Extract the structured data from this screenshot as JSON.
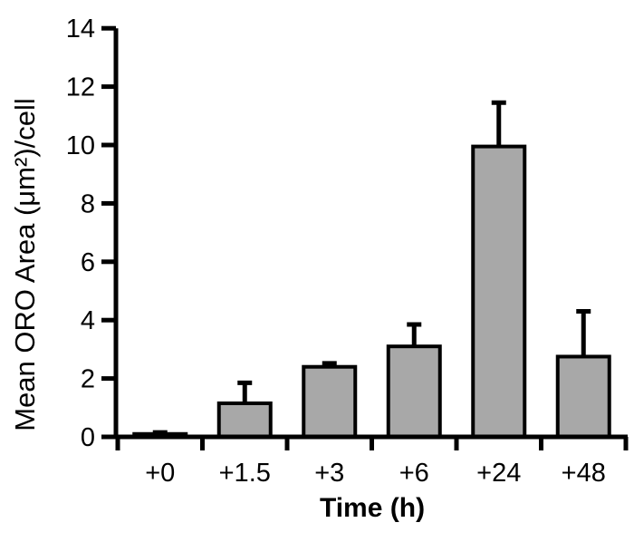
{
  "chart_data": {
    "type": "bar",
    "title": "",
    "xlabel": "Time (h)",
    "ylabel": "Mean ORO Area (μm²)/cell",
    "categories": [
      "+0",
      "+1.5",
      "+3",
      "+6",
      "+24",
      "+48"
    ],
    "values": [
      0.1,
      1.15,
      2.4,
      3.1,
      9.95,
      2.75
    ],
    "errors_plus": [
      0.05,
      0.7,
      0.12,
      0.75,
      1.5,
      1.55
    ],
    "error_style": "upper-only-with-caps",
    "ylim": [
      0,
      14
    ],
    "yticks": [
      0,
      2,
      4,
      6,
      8,
      10,
      12,
      14
    ],
    "grid": false,
    "legend": null,
    "bar_fill": "#A8A8A8",
    "bar_stroke": "#000000",
    "axis_color": "#000000",
    "background": "#FFFFFF"
  }
}
